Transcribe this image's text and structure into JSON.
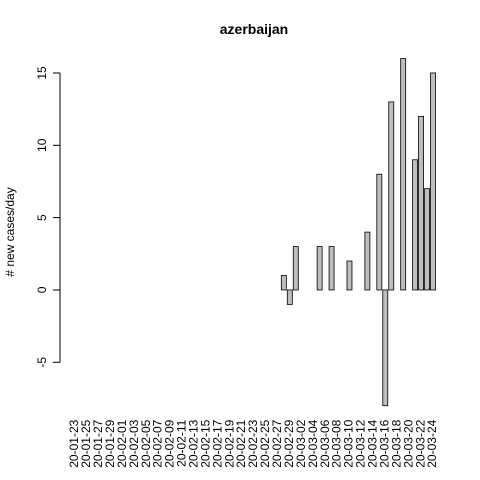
{
  "chart_data": {
    "type": "bar",
    "title": "azerbaijan",
    "ylabel": "# new cases/day",
    "categories": [
      "20-01-23",
      null,
      "20-01-25",
      null,
      "20-01-27",
      null,
      "20-01-29",
      null,
      "20-02-01",
      null,
      "20-02-03",
      null,
      "20-02-05",
      null,
      "20-02-07",
      null,
      "20-02-09",
      null,
      "20-02-11",
      null,
      "20-02-13",
      null,
      "20-02-15",
      null,
      "20-02-17",
      null,
      "20-02-19",
      null,
      "20-02-21",
      null,
      "20-02-23",
      null,
      "20-02-25",
      null,
      "20-02-27",
      null,
      "20-02-29",
      null,
      "20-03-02",
      null,
      "20-03-04",
      null,
      "20-03-06",
      null,
      "20-03-08",
      null,
      "20-03-10",
      null,
      "20-03-12",
      null,
      "20-03-14",
      null,
      "20-03-16",
      null,
      "20-03-18",
      null,
      "20-03-20",
      null,
      "20-03-22",
      null,
      "20-03-24"
    ],
    "values": [
      0,
      0,
      0,
      0,
      0,
      0,
      0,
      0,
      0,
      0,
      0,
      0,
      0,
      0,
      0,
      0,
      0,
      0,
      0,
      0,
      0,
      0,
      0,
      0,
      0,
      0,
      0,
      0,
      0,
      0,
      0,
      0,
      0,
      0,
      0,
      1,
      -1,
      3,
      0,
      0,
      0,
      3,
      0,
      3,
      0,
      0,
      2,
      0,
      0,
      4,
      0,
      8,
      -8,
      13,
      0,
      16,
      0,
      9,
      12,
      7,
      15
    ],
    "color": "#bebebe",
    "ylim": [
      -8,
      16
    ],
    "yticks": [
      -5,
      0,
      5,
      10,
      15
    ]
  }
}
